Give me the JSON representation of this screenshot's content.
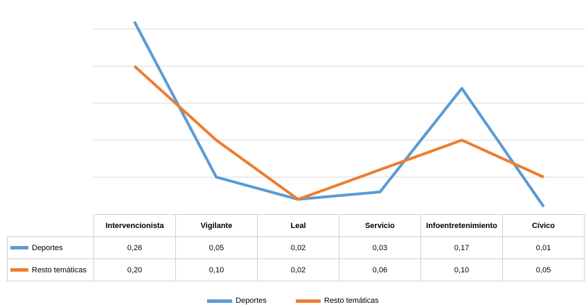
{
  "chart_data": {
    "type": "line",
    "categories": [
      "Intervencionista",
      "Vigilante",
      "Leal",
      "Servicio",
      "Infoentretenimiento",
      "Cívico"
    ],
    "series": [
      {
        "name": "Deportes",
        "values": [
          0.26,
          0.05,
          0.02,
          0.03,
          0.17,
          0.01
        ],
        "color": "#5b9bd5",
        "labels": [
          "0,26",
          "0,05",
          "0,02",
          "0,03",
          "0,17",
          "0,01"
        ]
      },
      {
        "name": "Resto temáticas",
        "values": [
          0.2,
          0.1,
          0.02,
          0.06,
          0.1,
          0.05
        ],
        "color": "#ed7d31",
        "labels": [
          "0,20",
          "0,10",
          "0,02",
          "0,06",
          "0,10",
          "0,05"
        ]
      }
    ],
    "ylim": [
      0,
      0.28
    ],
    "grid": true,
    "legend_position": "bottom",
    "data_table": true
  }
}
